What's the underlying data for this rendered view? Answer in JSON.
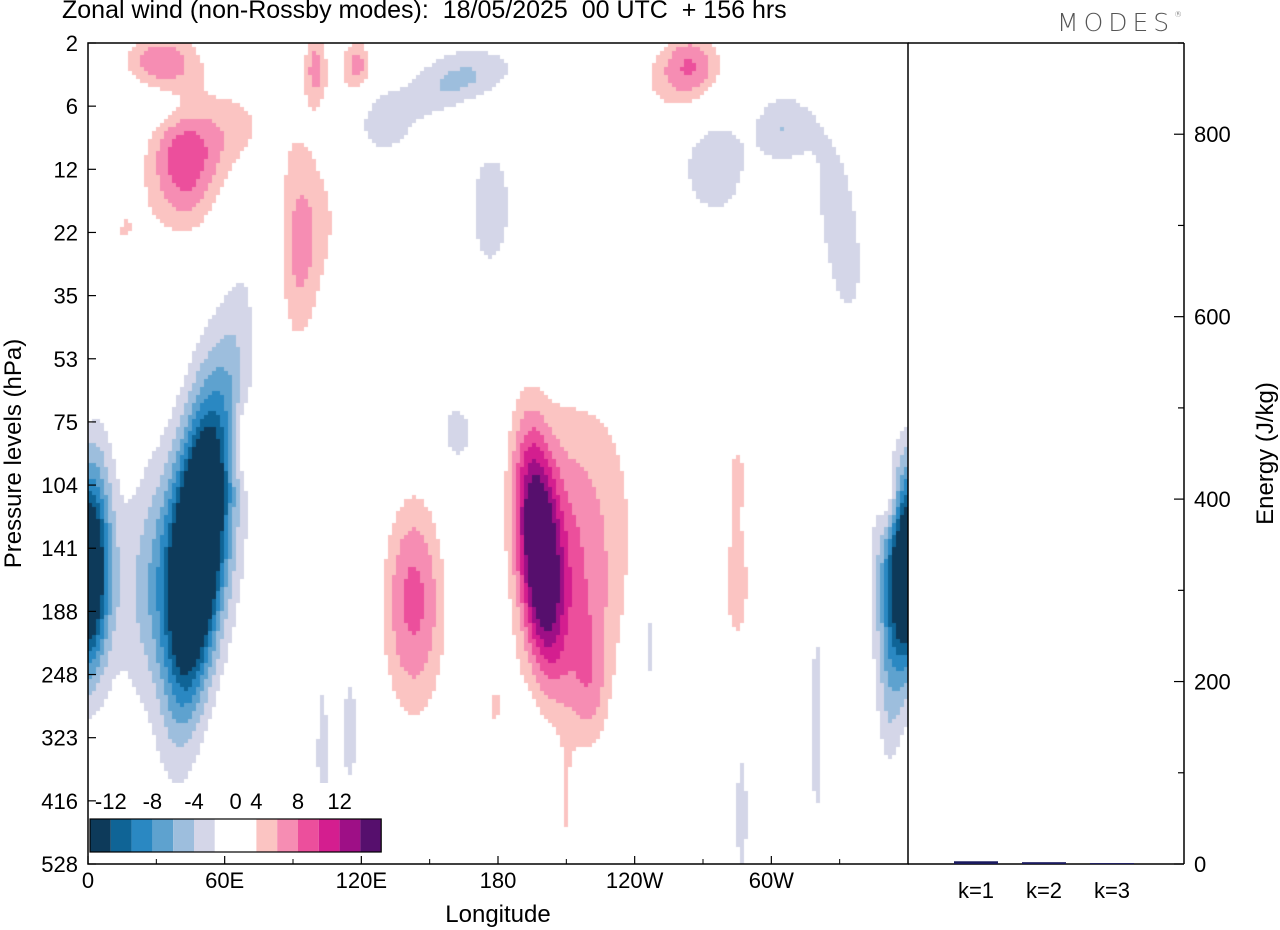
{
  "title": "Zonal wind (non-Rossby modes):  18/05/2025  00 UTC  + 156 hrs",
  "logo": "MODES",
  "chart_data": [
    {
      "type": "heatmap",
      "title": "Zonal wind (non-Rossby modes):  18/05/2025  00 UTC  + 156 hrs",
      "xlabel": "Longitude",
      "ylabel": "Pressure levels (hPa)",
      "x_ticks": [
        "0",
        "60E",
        "120E",
        "180",
        "120W",
        "60W"
      ],
      "x_tick_values": [
        0,
        60,
        120,
        180,
        240,
        300
      ],
      "xlim": [
        0,
        360
      ],
      "y_ticks": [
        "2",
        "6",
        "12",
        "22",
        "35",
        "53",
        "75",
        "104",
        "141",
        "188",
        "248",
        "323",
        "416",
        "528"
      ],
      "colorbar": {
        "labels": [
          "-12",
          "-8",
          "-4",
          "0",
          "4",
          "8",
          "12"
        ],
        "label_values": [
          -12,
          -8,
          -4,
          0,
          4,
          8,
          12
        ],
        "levels": [
          -14,
          -12,
          -10,
          -8,
          -6,
          -4,
          -2,
          2,
          4,
          6,
          8,
          10,
          12,
          14
        ],
        "colors": [
          "#0d3a5a",
          "#0f6496",
          "#2a88c2",
          "#5ea2cf",
          "#9dbedd",
          "#d4d6e8",
          "#ffffff",
          "#ffffff",
          "#fbc4c2",
          "#f68db3",
          "#ec4f9c",
          "#d41e8f",
          "#9e0f86",
          "#560f6d"
        ]
      },
      "features": [
        {
          "lon": 47,
          "level_index": 8.0,
          "value": -15,
          "sx": 8,
          "sy": 1.5,
          "tilt": -0.8
        },
        {
          "lon": 40,
          "level_index": 8.3,
          "value": -8,
          "sx": 16,
          "sy": 1.3,
          "tilt": -0.3
        },
        {
          "lon": 58,
          "level_index": 6.8,
          "value": -5,
          "sx": 10,
          "sy": 1.5,
          "tilt": -1.6
        },
        {
          "lon": 3,
          "level_index": 7.7,
          "value": -5,
          "sx": 6,
          "sy": 1.3,
          "tilt": 0
        },
        {
          "lon": 355,
          "level_index": 8.5,
          "value": -6,
          "sx": 7,
          "sy": 1.0,
          "tilt": 0
        },
        {
          "lon": 360,
          "level_index": 8.5,
          "value": -6,
          "sx": 7,
          "sy": 1.0,
          "tilt": 0
        },
        {
          "lon": 0,
          "level_index": 8.5,
          "value": -5,
          "sx": 5,
          "sy": 1.0,
          "tilt": 0
        },
        {
          "lon": 352,
          "level_index": 10.3,
          "value": -3.5,
          "sx": 4,
          "sy": 0.9,
          "tilt": 0
        },
        {
          "lon": 320,
          "level_index": 10.8,
          "value": -3.5,
          "sx": 2,
          "sy": 1.2,
          "tilt": 0
        },
        {
          "lon": 247,
          "level_index": 9.7,
          "value": -3.5,
          "sx": 2,
          "sy": 0.5,
          "tilt": 0
        },
        {
          "lon": 164,
          "level_index": 0.6,
          "value": -6,
          "sx": 18,
          "sy": 0.35,
          "tilt": -0.05
        },
        {
          "lon": 145,
          "level_index": 1.0,
          "value": -4,
          "sx": 18,
          "sy": 0.35,
          "tilt": -0.05
        },
        {
          "lon": 275,
          "level_index": 1.9,
          "value": -4,
          "sx": 10,
          "sy": 0.6,
          "tilt": 0
        },
        {
          "lon": 305,
          "level_index": 1.35,
          "value": -4,
          "sx": 9,
          "sy": 0.4,
          "tilt": 0
        },
        {
          "lon": 330,
          "level_index": 2.9,
          "value": -3.5,
          "sx": 8,
          "sy": 1.0,
          "tilt": 0.6
        },
        {
          "lon": 177,
          "level_index": 2.6,
          "value": -3.5,
          "sx": 7,
          "sy": 0.8,
          "tilt": 0
        },
        {
          "lon": 37,
          "level_index": 0.95,
          "value": -3.5,
          "sx": 14,
          "sy": 0.35,
          "tilt": 0
        },
        {
          "lon": 128,
          "level_index": 1.2,
          "value": -3.5,
          "sx": 10,
          "sy": 0.5,
          "tilt": 0
        },
        {
          "lon": 162,
          "level_index": 6.2,
          "value": -3.5,
          "sx": 6,
          "sy": 0.4,
          "tilt": 0
        },
        {
          "lon": 250,
          "level_index": 7.2,
          "value": -3.5,
          "sx": 3,
          "sy": 0.4,
          "tilt": 0
        },
        {
          "lon": 103,
          "level_index": 11.2,
          "value": -3.5,
          "sx": 2,
          "sy": 1.0,
          "tilt": 0
        },
        {
          "lon": 115,
          "level_index": 10.8,
          "value": -3.5,
          "sx": 3,
          "sy": 0.8,
          "tilt": 0
        },
        {
          "lon": 287,
          "level_index": 12.2,
          "value": -3.5,
          "sx": 2,
          "sy": 0.8,
          "tilt": 0
        },
        {
          "lon": 245,
          "level_index": 8.8,
          "value": -3.5,
          "sx": 2,
          "sy": 0.5,
          "tilt": 0
        },
        {
          "lon": 198,
          "level_index": 8.0,
          "value": 13.5,
          "sx": 7,
          "sy": 1.2,
          "tilt": 0.5
        },
        {
          "lon": 208,
          "level_index": 8.5,
          "value": 6,
          "sx": 18,
          "sy": 1.7,
          "tilt": 0.4
        },
        {
          "lon": 225,
          "level_index": 7.0,
          "value": 3.5,
          "sx": 22,
          "sy": 2.0,
          "tilt": 0
        },
        {
          "lon": 143,
          "level_index": 8.5,
          "value": 6,
          "sx": 10,
          "sy": 1.2,
          "tilt": 0
        },
        {
          "lon": 143,
          "level_index": 9.7,
          "value": 3.5,
          "sx": 13,
          "sy": 1.4,
          "tilt": 0
        },
        {
          "lon": 178,
          "level_index": 10.6,
          "value": 3.5,
          "sx": 8,
          "sy": 0.8,
          "tilt": 0
        },
        {
          "lon": 220,
          "level_index": 10.2,
          "value": 3.5,
          "sx": 6,
          "sy": 0.8,
          "tilt": 0
        },
        {
          "lon": 258,
          "level_index": 11.0,
          "value": 3.5,
          "sx": 4,
          "sy": 1.4,
          "tilt": 0
        },
        {
          "lon": 285,
          "level_index": 8.6,
          "value": 5,
          "sx": 6,
          "sy": 1.0,
          "tilt": 0
        },
        {
          "lon": 210,
          "level_index": 12.3,
          "value": 3.5,
          "sx": 3,
          "sy": 0.8,
          "tilt": 0
        },
        {
          "lon": 108,
          "level_index": 8.8,
          "value": 3.5,
          "sx": 4,
          "sy": 0.9,
          "tilt": 0
        },
        {
          "lon": 68,
          "level_index": 6.3,
          "value": 3.5,
          "sx": 5,
          "sy": 0.4,
          "tilt": 0
        },
        {
          "lon": 353,
          "level_index": 5.3,
          "value": 3.5,
          "sx": 8,
          "sy": 0.5,
          "tilt": 0
        },
        {
          "lon": 352,
          "level_index": 7.3,
          "value": 3.5,
          "sx": 3,
          "sy": 0.4,
          "tilt": 0
        },
        {
          "lon": 285,
          "level_index": 6.7,
          "value": 3.5,
          "sx": 5,
          "sy": 0.6,
          "tilt": 0
        },
        {
          "lon": 42,
          "level_index": 1.9,
          "value": 6,
          "sx": 11,
          "sy": 0.85,
          "tilt": 0
        },
        {
          "lon": 42,
          "level_index": 1.5,
          "value": 3.5,
          "sx": 17,
          "sy": 1.1,
          "tilt": 0
        },
        {
          "lon": 92,
          "level_index": 3.4,
          "value": 5,
          "sx": 7,
          "sy": 1.4,
          "tilt": 0
        },
        {
          "lon": 105,
          "level_index": 2.8,
          "value": 3.5,
          "sx": 12,
          "sy": 1.1,
          "tilt": 0
        },
        {
          "lon": 15,
          "level_index": 3.0,
          "value": 3.5,
          "sx": 8,
          "sy": 0.5,
          "tilt": 0
        },
        {
          "lon": 30,
          "level_index": 0.3,
          "value": 6,
          "sx": 12,
          "sy": 0.35,
          "tilt": 0
        },
        {
          "lon": 100,
          "level_index": 0.35,
          "value": 6,
          "sx": 4,
          "sy": 0.45,
          "tilt": 0
        },
        {
          "lon": 118,
          "level_index": 0.35,
          "value": 6,
          "sx": 5,
          "sy": 0.35,
          "tilt": 0
        },
        {
          "lon": 135,
          "level_index": 0.8,
          "value": 3.5,
          "sx": 20,
          "sy": 0.45,
          "tilt": 0
        },
        {
          "lon": 265,
          "level_index": 0.3,
          "value": 6,
          "sx": 10,
          "sy": 0.4,
          "tilt": 0
        },
        {
          "lon": 255,
          "level_index": 0.7,
          "value": 3.5,
          "sx": 18,
          "sy": 0.5,
          "tilt": 0
        },
        {
          "lon": 175,
          "level_index": 1.0,
          "value": 3.5,
          "sx": 20,
          "sy": 0.4,
          "tilt": 0
        },
        {
          "lon": 68,
          "level_index": 1.3,
          "value": 3.5,
          "sx": 14,
          "sy": 0.6,
          "tilt": 0
        },
        {
          "lon": 355,
          "level_index": 0.5,
          "value": 3.5,
          "sx": 4,
          "sy": 0.5,
          "tilt": 0
        },
        {
          "lon": 5,
          "level_index": 1.4,
          "value": 3.5,
          "sx": 3,
          "sy": 0.4,
          "tilt": 0
        },
        {
          "lon": 20,
          "level_index": 12.7,
          "value": 3.5,
          "sx": 3,
          "sy": 0.4,
          "tilt": 0
        },
        {
          "lon": 150,
          "level_index": 12.8,
          "value": 3.5,
          "sx": 2,
          "sy": 0.5,
          "tilt": 0
        }
      ]
    },
    {
      "type": "bar",
      "categories": [
        "k=1",
        "k=2",
        "k=3"
      ],
      "values": [
        3,
        2,
        1
      ],
      "ylabel": "Energy (J/kg)",
      "ylim": [
        0,
        900
      ],
      "y_ticks": [
        "0",
        "200",
        "400",
        "600",
        "800"
      ],
      "y_tick_values": [
        0,
        200,
        400,
        600,
        800
      ],
      "bar_color": "#1a1a5e"
    }
  ]
}
